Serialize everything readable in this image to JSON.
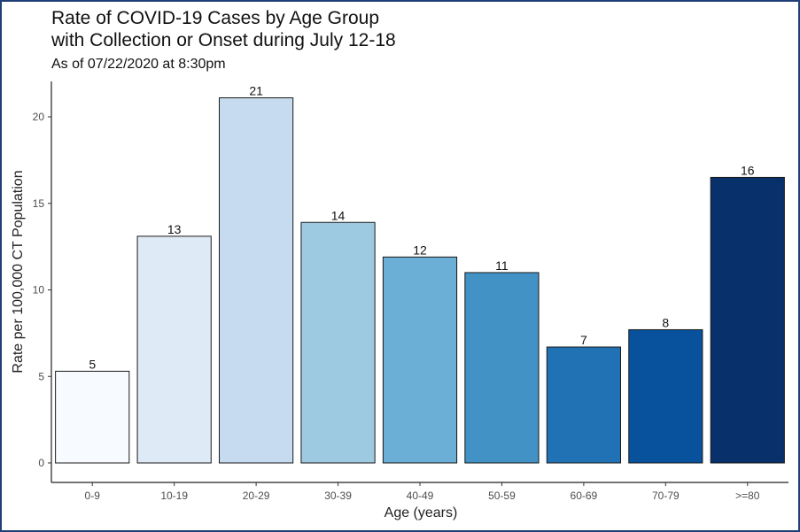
{
  "chart_data": {
    "type": "bar",
    "title": "Rate of COVID-19 Cases by Age Group\nwith Collection or Onset during July 12-18",
    "subtitle": "As of 07/22/2020 at 8:30pm",
    "xlabel": "Age (years)",
    "ylabel": "Rate per 100,000 CT Population",
    "categories": [
      "0-9",
      "10-19",
      "20-29",
      "30-39",
      "40-49",
      "50-59",
      "60-69",
      "70-79",
      ">=80"
    ],
    "values": [
      5.3,
      13.1,
      21.1,
      13.9,
      11.9,
      11.0,
      6.7,
      7.7,
      16.5
    ],
    "data_labels": [
      "5",
      "13",
      "21",
      "14",
      "12",
      "11",
      "7",
      "8",
      "16"
    ],
    "ylim": [
      0,
      22
    ],
    "yticks": [
      0,
      5,
      10,
      15,
      20
    ],
    "grid": false,
    "legend": "none",
    "colors": [
      "#f7fbff",
      "#deebf7",
      "#c6dbef",
      "#9ecae1",
      "#6baed6",
      "#4292c6",
      "#2171b5",
      "#08519c",
      "#08306b"
    ]
  }
}
